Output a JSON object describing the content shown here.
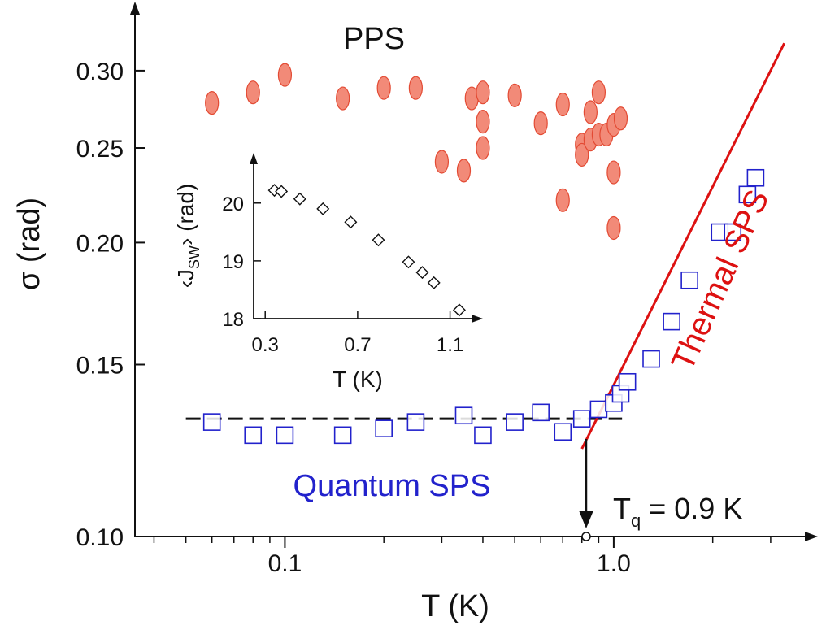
{
  "chart_data": [
    {
      "type": "scatter",
      "title": "",
      "xlabel": "T (K)",
      "ylabel": "σ  (rad)",
      "xscale": "log",
      "yscale": "log",
      "xlim": [
        0.035,
        3.9
      ],
      "ylim": [
        0.1,
        0.345
      ],
      "xticks": [
        {
          "value": 0.1,
          "label": "0.1"
        },
        {
          "value": 1.0,
          "label": "1.0"
        }
      ],
      "yticks": [
        {
          "value": 0.1,
          "label": "0.10"
        },
        {
          "value": 0.15,
          "label": "0.15"
        },
        {
          "value": 0.2,
          "label": "0.20"
        },
        {
          "value": 0.25,
          "label": "0.25"
        },
        {
          "value": 0.3,
          "label": "0.30"
        }
      ],
      "series": [
        {
          "name": "PPS",
          "marker": "ellipse",
          "color": "#f28a78",
          "stroke": "#e34a33",
          "points": [
            [
              0.06,
              0.278
            ],
            [
              0.08,
              0.285
            ],
            [
              0.1,
              0.297
            ],
            [
              0.15,
              0.281
            ],
            [
              0.2,
              0.288
            ],
            [
              0.25,
              0.288
            ],
            [
              0.3,
              0.242
            ],
            [
              0.35,
              0.237
            ],
            [
              0.37,
              0.281
            ],
            [
              0.4,
              0.285
            ],
            [
              0.4,
              0.266
            ],
            [
              0.4,
              0.25
            ],
            [
              0.5,
              0.283
            ],
            [
              0.6,
              0.265
            ],
            [
              0.7,
              0.277
            ],
            [
              0.7,
              0.221
            ],
            [
              0.8,
              0.252
            ],
            [
              0.8,
              0.246
            ],
            [
              0.85,
              0.272
            ],
            [
              0.9,
              0.285
            ],
            [
              0.85,
              0.255
            ],
            [
              0.9,
              0.258
            ],
            [
              0.95,
              0.258
            ],
            [
              1.0,
              0.264
            ],
            [
              1.05,
              0.268
            ],
            [
              1.0,
              0.236
            ],
            [
              1.0,
              0.207
            ]
          ]
        },
        {
          "name": "Quantum SPS",
          "marker": "open-square",
          "color": "#2222cc",
          "points": [
            [
              0.06,
              0.131
            ],
            [
              0.08,
              0.127
            ],
            [
              0.1,
              0.127
            ],
            [
              0.15,
              0.127
            ],
            [
              0.2,
              0.129
            ],
            [
              0.25,
              0.131
            ],
            [
              0.35,
              0.133
            ],
            [
              0.4,
              0.127
            ],
            [
              0.5,
              0.131
            ],
            [
              0.6,
              0.134
            ],
            [
              0.7,
              0.128
            ],
            [
              0.8,
              0.132
            ],
            [
              0.9,
              0.135
            ],
            [
              1.0,
              0.137
            ],
            [
              1.05,
              0.14
            ],
            [
              1.1,
              0.144
            ],
            [
              1.3,
              0.152
            ],
            [
              1.5,
              0.166
            ],
            [
              1.7,
              0.183
            ],
            [
              2.1,
              0.205
            ],
            [
              2.3,
              0.205
            ],
            [
              2.55,
              0.224
            ],
            [
              2.7,
              0.233
            ]
          ]
        }
      ],
      "lines": [
        {
          "name": "quantum-plateau",
          "style": "dashed",
          "color": "#111111",
          "points": [
            [
              0.05,
              0.132
            ],
            [
              1.06,
              0.132
            ]
          ]
        },
        {
          "name": "thermal-fit",
          "style": "solid",
          "color": "#dd1111",
          "points": [
            [
              0.8,
              0.123
            ],
            [
              3.3,
              0.32
            ]
          ]
        }
      ],
      "annotations": [
        {
          "name": "pps-label",
          "text": "PPS"
        },
        {
          "name": "quantum-label",
          "text": "Quantum SPS"
        },
        {
          "name": "thermal-label",
          "text": "Thermal SPS"
        },
        {
          "name": "tq-label",
          "main": "T",
          "sub": "q",
          "rest": " = 0.9 K",
          "x": 0.9
        }
      ]
    },
    {
      "type": "scatter",
      "title": "",
      "xlabel": "T (K)",
      "ylabel_pre": "‹J",
      "ylabel_sub": "SW",
      "ylabel_post": "› (rad)",
      "xlim": [
        0.25,
        1.2
      ],
      "ylim": [
        18,
        20.7
      ],
      "xticks": [
        {
          "value": 0.3,
          "label": "0.3"
        },
        {
          "value": 0.7,
          "label": "0.7"
        },
        {
          "value": 1.1,
          "label": "1.1"
        }
      ],
      "yticks": [
        {
          "value": 18,
          "label": "18"
        },
        {
          "value": 19,
          "label": "19"
        },
        {
          "value": 20,
          "label": "20"
        }
      ],
      "series": [
        {
          "name": "J_SW",
          "marker": "open-diamond",
          "color": "#111111",
          "points": [
            [
              0.34,
              20.22
            ],
            [
              0.37,
              20.2
            ],
            [
              0.45,
              20.07
            ],
            [
              0.55,
              19.9
            ],
            [
              0.67,
              19.67
            ],
            [
              0.79,
              19.36
            ],
            [
              0.92,
              18.98
            ],
            [
              0.98,
              18.8
            ],
            [
              1.03,
              18.62
            ],
            [
              1.14,
              18.15
            ]
          ]
        }
      ]
    }
  ]
}
